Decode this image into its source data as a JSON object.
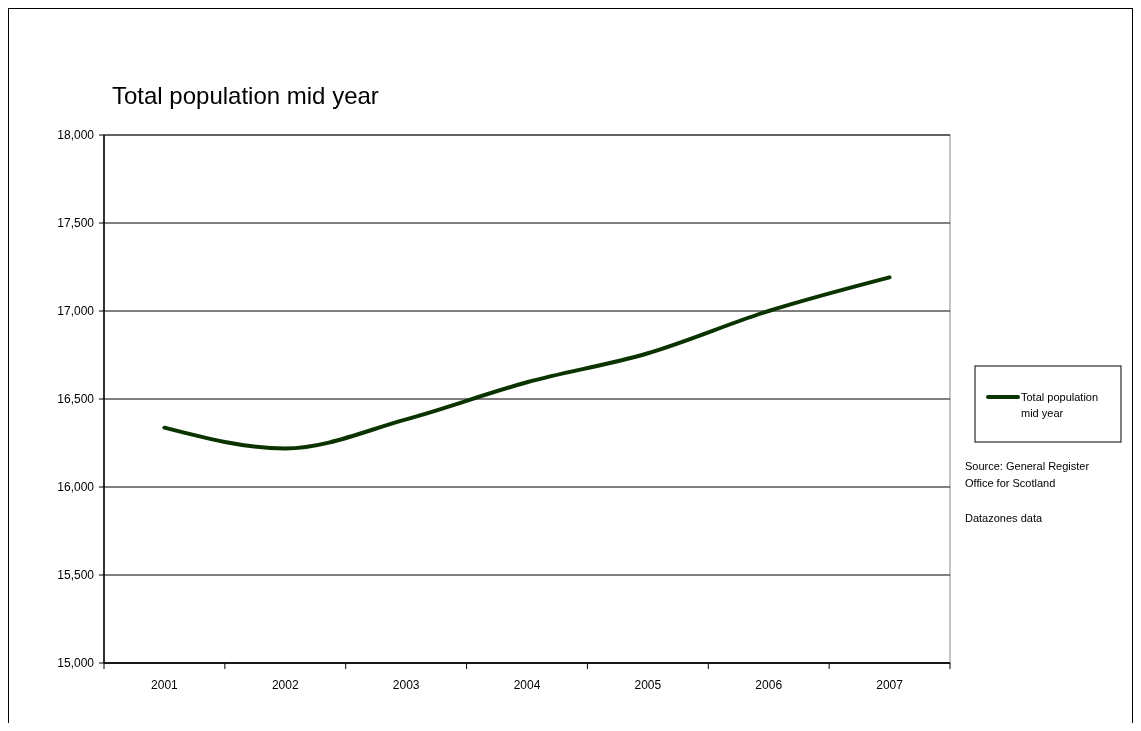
{
  "chart_data": {
    "type": "line",
    "title": "Total population mid year",
    "categories": [
      "2001",
      "2002",
      "2003",
      "2004",
      "2005",
      "2006",
      "2007"
    ],
    "series": [
      {
        "name": "Total population mid year",
        "color": "#0a3300",
        "values": [
          16337,
          16219,
          16384,
          16595,
          16760,
          17000,
          17191
        ]
      }
    ],
    "ylim": [
      15000,
      18000
    ],
    "yticks": [
      {
        "value": 15000,
        "label": "15,000"
      },
      {
        "value": 15500,
        "label": "15,500"
      },
      {
        "value": 16000,
        "label": "16,000"
      },
      {
        "value": 16500,
        "label": "16,500"
      },
      {
        "value": 17000,
        "label": "17,000"
      },
      {
        "value": 17500,
        "label": "17,500"
      },
      {
        "value": 18000,
        "label": "18,000"
      }
    ],
    "grid": "y",
    "legend": "right",
    "annotations": [
      "Source: General Register Office for Scotland",
      "Datazones data"
    ]
  }
}
